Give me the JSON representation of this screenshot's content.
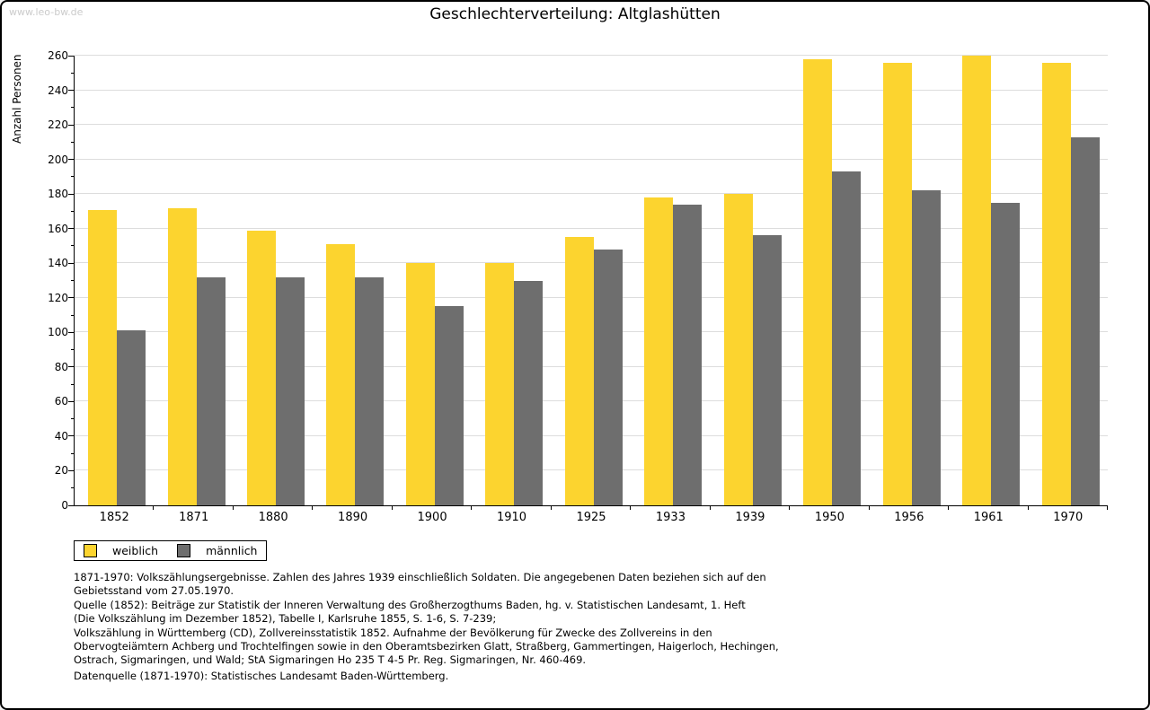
{
  "watermark": "www.leo-bw.de",
  "title": "Geschlechterverteilung: Altglashütten",
  "chart_data": {
    "type": "bar",
    "title": "Geschlechterverteilung: Altglashütten",
    "xlabel": "",
    "ylabel": "Anzahl Personen",
    "ylim": [
      0,
      260
    ],
    "ytick_step": 20,
    "grid": true,
    "legend_position": "bottom-left",
    "categories": [
      "1852",
      "1871",
      "1880",
      "1890",
      "1900",
      "1910",
      "1925",
      "1933",
      "1939",
      "1950",
      "1956",
      "1961",
      "1970"
    ],
    "series": [
      {
        "name": "weiblich",
        "key": "weiblich",
        "color": "#FCD42F",
        "values": [
          171,
          172,
          159,
          151,
          140,
          140,
          155,
          178,
          180,
          258,
          256,
          260,
          256
        ]
      },
      {
        "name": "männlich",
        "key": "maennlich",
        "color": "#6E6E6E",
        "values": [
          101,
          132,
          132,
          132,
          115,
          130,
          148,
          174,
          156,
          193,
          182,
          175,
          213
        ]
      }
    ]
  },
  "colors": {
    "weiblich": "#FCD42F",
    "maennlich": "#6E6E6E",
    "gridline": "#DDDDDD",
    "watermark": "#CBCBCB",
    "axis": "#000000",
    "background": "#FFFFFF"
  },
  "footnotes": {
    "lines": [
      "1871-1970: Volkszählungsergebnisse. Zahlen des Jahres 1939 einschließlich Soldaten. Die angegebenen Daten beziehen sich auf den",
      "Gebietsstand vom 27.05.1970.",
      "Quelle (1852): Beiträge zur Statistik der Inneren Verwaltung des Großherzogthums Baden, hg. v. Statistischen Landesamt, 1. Heft",
      "(Die Volkszählung im Dezember 1852), Tabelle I, Karlsruhe 1855, S. 1-6, S. 7-239;",
      "Volkszählung in Württemberg (CD), Zollvereinsstatistik 1852. Aufnahme der Bevölkerung für Zwecke des Zollvereins in den",
      "Obervogteiämtern Achberg und Trochtelfingen sowie in den Oberamtsbezirken Glatt, Straßberg, Gammertingen, Haigerloch, Hechingen,",
      "Ostrach, Sigmaringen, und Wald; StA Sigmaringen Ho 235 T 4-5 Pr. Reg. Sigmaringen, Nr. 460-469."
    ],
    "datasource": "Datenquelle (1871-1970): Statistisches Landesamt Baden-Württemberg."
  }
}
